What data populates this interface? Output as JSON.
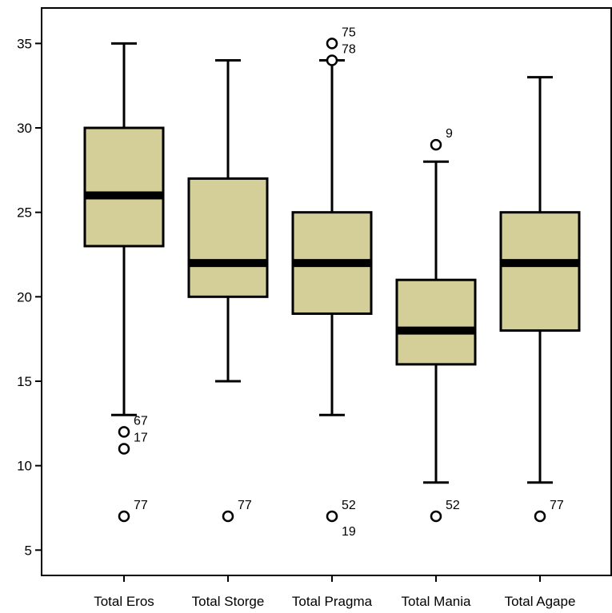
{
  "chart_data": {
    "type": "boxplot",
    "title": "",
    "xlabel": "",
    "ylabel": "",
    "ylim": [
      3.5,
      37.1
    ],
    "yticks": [
      5,
      10,
      15,
      20,
      25,
      30,
      35
    ],
    "grid": false,
    "box_color": "#d4cf99",
    "line_color": "#000000",
    "boxes": [
      {
        "category": "Total Eros",
        "whisker_low": 13,
        "q1": 23,
        "median": 26,
        "q3": 30,
        "whisker_high": 35,
        "outliers": [
          {
            "value": 12,
            "label": "67"
          },
          {
            "value": 11,
            "label": "17"
          },
          {
            "value": 7,
            "label": "77"
          }
        ]
      },
      {
        "category": "Total Storge",
        "whisker_low": 15,
        "q1": 20,
        "median": 22,
        "q3": 27,
        "whisker_high": 34,
        "outliers": [
          {
            "value": 7,
            "label": "77"
          }
        ]
      },
      {
        "category": "Total Pragma",
        "whisker_low": 13,
        "q1": 19,
        "median": 22,
        "q3": 25,
        "whisker_high": 34,
        "outliers": [
          {
            "value": 35,
            "label": "75"
          },
          {
            "value": 34,
            "label": "78"
          },
          {
            "value": 7,
            "label": "52"
          },
          {
            "value": 7,
            "label": "19"
          }
        ]
      },
      {
        "category": "Total Mania",
        "whisker_low": 9,
        "q1": 16,
        "median": 18,
        "q3": 21,
        "whisker_high": 28,
        "outliers": [
          {
            "value": 29,
            "label": "9"
          },
          {
            "value": 7,
            "label": "52"
          }
        ]
      },
      {
        "category": "Total Agape",
        "whisker_low": 9,
        "q1": 18,
        "median": 22,
        "q3": 25,
        "whisker_high": 33,
        "outliers": [
          {
            "value": 7,
            "label": "77"
          }
        ]
      }
    ]
  }
}
